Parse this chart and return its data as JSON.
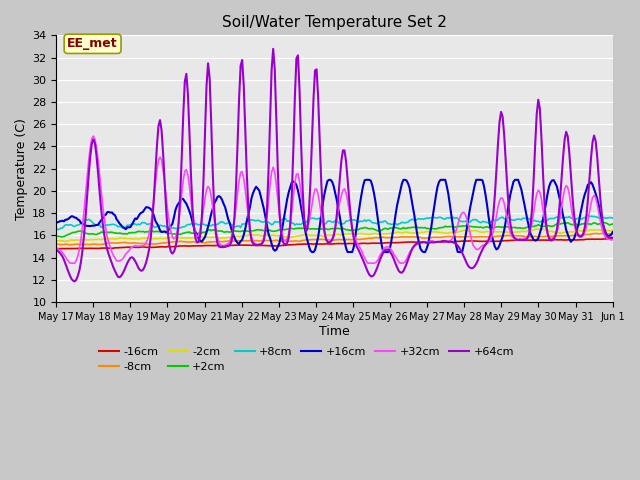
{
  "title": "Soil/Water Temperature Set 2",
  "xlabel": "Time",
  "ylabel": "Temperature (C)",
  "ylim": [
    10,
    34
  ],
  "yticks": [
    10,
    12,
    14,
    16,
    18,
    20,
    22,
    24,
    26,
    28,
    30,
    32,
    34
  ],
  "annotation": "EE_met",
  "x_labels": [
    "May 17",
    "May 18",
    "May 19",
    "May 20",
    "May 21",
    "May 22",
    "May 23",
    "May 24",
    "May 25",
    "May 26",
    "May 27",
    "May 28",
    "May 29",
    "May 30",
    "May 31",
    "Jun 1"
  ],
  "colors": {
    "-16cm": "#dd0000",
    "-8cm": "#ff8800",
    "-2cm": "#dddd00",
    "+2cm": "#00cc00",
    "+8cm": "#00cccc",
    "+16cm": "#0000cc",
    "+32cm": "#ff44ff",
    "+64cm": "#9900cc"
  },
  "fig_facecolor": "#c8c8c8",
  "ax_facecolor": "#e8e8e8",
  "grid_color": "#ffffff"
}
